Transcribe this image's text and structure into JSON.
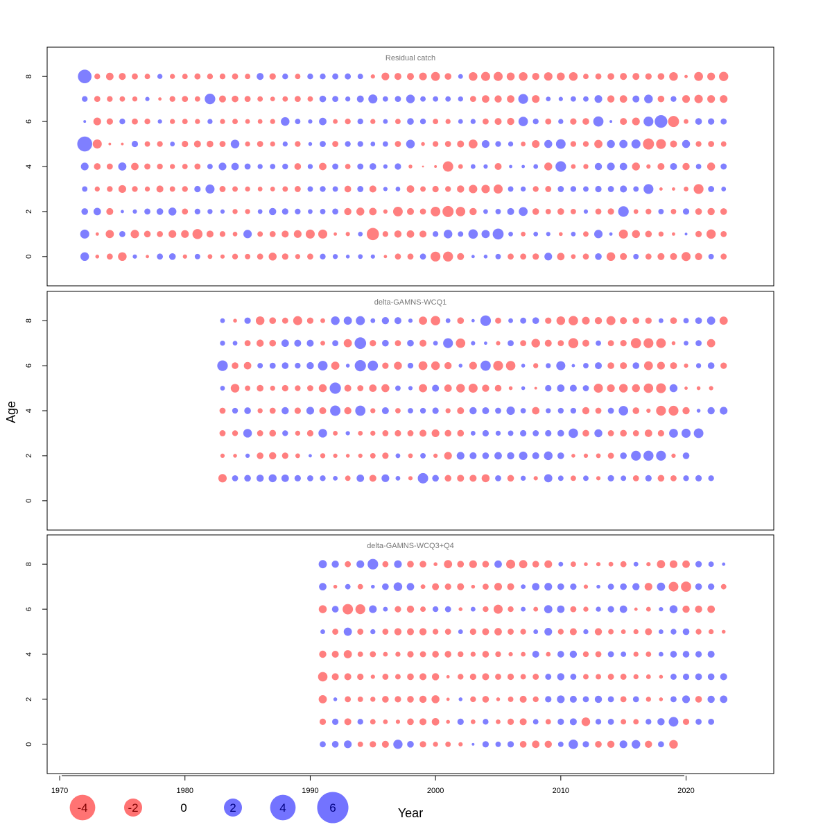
{
  "figure": {
    "y_axis_label": "Age",
    "x_axis_label": "Year",
    "x_tick_labels": [
      "1970",
      "1980",
      "1990",
      "2000",
      "2010",
      "2020"
    ],
    "y_tick_labels": [
      "0",
      "2",
      "4",
      "6",
      "8"
    ]
  },
  "legend": {
    "items": [
      {
        "label": "-4",
        "value": -4
      },
      {
        "label": "-2",
        "value": -2
      },
      {
        "label": "0",
        "value": 0
      },
      {
        "label": "2",
        "value": 2
      },
      {
        "label": "4",
        "value": 4
      },
      {
        "label": "6",
        "value": 6
      }
    ]
  },
  "colors": {
    "positive": "#0000ff",
    "negative": "#ff0000",
    "panel_title": "#777777",
    "frame": "#000000"
  },
  "chart_data": [
    {
      "type": "bubble",
      "title": "Residual catch",
      "xlabel": "Year",
      "ylabel": "Age",
      "xlim": [
        1969,
        2027
      ],
      "ylim": [
        -1.3,
        9.3
      ],
      "ages": [
        0,
        1,
        2,
        3,
        4,
        5,
        6,
        7,
        8
      ],
      "year_start": 1972,
      "year_end": 2023,
      "residuals_by_age": {
        "8": [
          5.0,
          -0.9,
          -1.5,
          -1.3,
          -1.0,
          -0.8,
          0.7,
          -0.7,
          -0.8,
          -1.0,
          -0.9,
          -0.9,
          -1.0,
          -0.8,
          1.3,
          -1.1,
          0.9,
          -0.8,
          0.9,
          0.9,
          1.0,
          1.0,
          0.8,
          -0.5,
          -1.6,
          -1.3,
          -1.3,
          -1.6,
          -2.1,
          -1.2,
          0.6,
          -2.0,
          -2.2,
          -2.2,
          -1.7,
          -2.0,
          -1.4,
          -1.9,
          -1.7,
          -2.0,
          -0.8,
          -1.0,
          -1.2,
          -1.3,
          -1.3,
          -1.1,
          -1.2,
          -2.0,
          -0.3,
          -2.1,
          -1.6,
          -2.3
        ],
        "7": [
          0.9,
          -1.0,
          -0.9,
          -0.8,
          -0.7,
          0.5,
          -0.3,
          -0.9,
          -1.0,
          -0.8,
          3.0,
          -1.3,
          -1.2,
          -1.0,
          -0.8,
          -0.6,
          -0.8,
          -1.0,
          -0.8,
          1.2,
          1.0,
          0.7,
          1.3,
          2.2,
          0.8,
          1.0,
          2.0,
          0.8,
          0.8,
          0.8,
          0.7,
          -1.0,
          -1.5,
          -1.4,
          -1.5,
          2.6,
          -1.6,
          0.6,
          0.5,
          0.8,
          0.8,
          1.6,
          -1.4,
          -1.5,
          1.3,
          2.0,
          -1.2,
          0.9,
          -1.6,
          -1.9,
          -1.6,
          -1.6
        ],
        "6": [
          0.2,
          -1.6,
          -1.1,
          0.9,
          -1.0,
          -0.9,
          0.5,
          -0.7,
          -0.8,
          -0.7,
          0.7,
          -0.7,
          -0.8,
          -0.6,
          -0.6,
          -0.7,
          2.0,
          0.8,
          0.5,
          1.5,
          -0.6,
          -0.9,
          0.9,
          -0.7,
          0.6,
          -0.8,
          1.2,
          0.9,
          -0.8,
          -0.7,
          0.6,
          0.7,
          -1.0,
          -1.3,
          -1.4,
          2.4,
          0.9,
          -1.0,
          0.7,
          -1.1,
          -1.2,
          2.8,
          0.2,
          -1.3,
          -1.6,
          2.6,
          4.3,
          -3.3,
          -0.6,
          1.2,
          1.1,
          1.0
        ],
        "5": [
          6.0,
          -2.2,
          -0.2,
          -0.2,
          1.1,
          -0.8,
          -0.9,
          0.6,
          -1.1,
          -1.3,
          -1.2,
          -1.0,
          2.0,
          -0.7,
          -1.0,
          -0.7,
          0.7,
          -0.9,
          0.4,
          1.0,
          -1.0,
          0.9,
          0.9,
          0.6,
          0.8,
          -1.0,
          2.0,
          -0.4,
          -0.9,
          -1.0,
          -1.3,
          -2.1,
          1.6,
          0.9,
          0.7,
          -0.6,
          -1.6,
          1.7,
          2.5,
          -0.9,
          -0.9,
          -1.8,
          1.7,
          1.8,
          2.2,
          -3.3,
          -2.6,
          -1.3,
          1.7,
          -0.9,
          -1.0,
          -0.8
        ],
        "4": [
          1.6,
          -1.2,
          -1.0,
          1.8,
          -1.5,
          -1.0,
          -0.9,
          -0.7,
          -0.8,
          -1.0,
          0.8,
          1.6,
          1.5,
          1.0,
          0.7,
          0.8,
          0.9,
          -1.2,
          0.7,
          -1.5,
          1.0,
          -0.8,
          1.0,
          1.2,
          0.5,
          1.1,
          -0.4,
          -0.1,
          -0.2,
          -2.9,
          -0.6,
          0.6,
          0.5,
          -1.3,
          0.3,
          0.3,
          0.6,
          -1.7,
          3.0,
          -0.6,
          -0.7,
          1.4,
          1.6,
          1.5,
          -1.7,
          -0.5,
          -1.3,
          1.3,
          -1.4,
          0.8,
          -1.7,
          1.0
        ],
        "3": [
          0.8,
          -0.7,
          -0.9,
          -1.6,
          -0.9,
          -0.7,
          -1.3,
          -0.8,
          -0.9,
          1.1,
          2.2,
          -1.0,
          -0.8,
          -0.7,
          -0.6,
          -0.6,
          -0.8,
          -1.0,
          0.8,
          0.9,
          0.8,
          -1.2,
          1.0,
          -1.3,
          0.5,
          0.6,
          -1.5,
          -0.8,
          -1.1,
          -0.9,
          -1.4,
          -1.9,
          -1.9,
          -2.2,
          0.8,
          0.7,
          -0.9,
          -1.0,
          1.0,
          0.9,
          0.8,
          1.1,
          1.0,
          1.3,
          0.8,
          2.6,
          -0.3,
          -0.3,
          -0.6,
          -2.6,
          1.0,
          0.6
        ],
        "2": [
          1.2,
          1.5,
          -1.3,
          0.3,
          0.5,
          1.0,
          1.2,
          1.7,
          -1.0,
          0.9,
          0.7,
          0.5,
          -0.7,
          -0.7,
          0.6,
          1.4,
          1.1,
          0.9,
          0.6,
          0.8,
          1.0,
          -1.4,
          -1.7,
          -1.5,
          -0.5,
          -2.5,
          -1.3,
          -1.0,
          -2.5,
          -3.3,
          -2.4,
          -1.4,
          0.6,
          0.8,
          1.3,
          2.1,
          -1.2,
          -0.8,
          -1.2,
          -0.8,
          0.5,
          -1.0,
          -1.1,
          3.0,
          -0.6,
          -0.9,
          0.8,
          -0.8,
          1.1,
          -1.2,
          -1.4,
          -1.2
        ],
        "1": [
          2.2,
          -0.3,
          -1.8,
          1.0,
          -1.9,
          -1.2,
          -1.0,
          -1.6,
          -1.6,
          -2.7,
          -1.3,
          -0.9,
          -0.6,
          1.9,
          -0.8,
          -1.0,
          -1.3,
          -1.6,
          -2.2,
          -2.2,
          -0.3,
          -0.5,
          0.6,
          -4.0,
          -0.9,
          -1.4,
          -1.5,
          -1.3,
          0.9,
          2.0,
          0.8,
          2.4,
          1.8,
          3.2,
          0.6,
          -0.6,
          0.6,
          0.5,
          -0.4,
          0.6,
          -0.8,
          1.9,
          0.3,
          -2.2,
          -1.7,
          -1.2,
          -0.7,
          -0.3,
          0.2,
          -1.1,
          -2.3,
          -1.0
        ],
        "0": [
          2.0,
          -0.4,
          -1.0,
          -2.0,
          0.5,
          -0.3,
          1.0,
          1.2,
          -0.5,
          0.8,
          -0.6,
          -0.5,
          -0.9,
          -0.8,
          -1.0,
          -1.7,
          -1.1,
          -0.7,
          -1.0,
          0.9,
          0.7,
          0.4,
          0.6,
          0.5,
          -0.3,
          -1.0,
          -1.0,
          1.0,
          -2.6,
          -2.7,
          -1.3,
          0.3,
          0.4,
          0.8,
          -1.0,
          -1.0,
          -1.1,
          1.6,
          -1.5,
          -0.6,
          -1.0,
          1.2,
          -2.0,
          -1.3,
          0.8,
          -1.0,
          -1.3,
          -1.3,
          -2.2,
          -1.4,
          0.8,
          -1.0
        ]
      }
    },
    {
      "type": "bubble",
      "title": "delta-GAMNS-WCQ1",
      "xlabel": "Year",
      "ylabel": "Age",
      "xlim": [
        1969,
        2027
      ],
      "ylim": [
        -1.3,
        9.3
      ],
      "ages": [
        0,
        1,
        2,
        3,
        4,
        5,
        6,
        7,
        8
      ],
      "year_start": 1983,
      "year_end": 2024,
      "residuals_by_age": {
        "8": [
          0.6,
          -0.4,
          1.1,
          -2.0,
          -1.2,
          -1.0,
          -2.2,
          -1.1,
          -0.6,
          2.0,
          1.8,
          2.2,
          0.6,
          1.4,
          1.3,
          0.5,
          -1.8,
          -2.4,
          0.6,
          -1.2,
          0.3,
          3.0,
          -1.0,
          0.6,
          1.0,
          1.2,
          -1.1,
          -2.0,
          -2.4,
          -1.6,
          -1.4,
          -2.2,
          -1.3,
          -1.2,
          -1.1,
          0.6,
          -1.2,
          0.8,
          1.2,
          1.8,
          -1.8
        ],
        "7": [
          0.7,
          0.6,
          -1.0,
          -1.4,
          -1.2,
          1.5,
          1.3,
          1.3,
          -0.6,
          1.0,
          -1.8,
          3.6,
          -1.1,
          1.2,
          -1.0,
          1.2,
          -1.3,
          0.6,
          2.6,
          -2.4,
          0.5,
          0.3,
          -0.5,
          1.0,
          -1.0,
          -2.0,
          -1.3,
          -1.0,
          -2.7,
          -1.3,
          0.8,
          -1.0,
          -1.1,
          -2.8,
          -2.6,
          -2.5,
          -0.4,
          0.6,
          1.0,
          -1.8
        ],
        "6": [
          3.0,
          -1.2,
          -1.5,
          0.8,
          1.0,
          1.2,
          0.9,
          1.4,
          2.5,
          -1.8,
          0.4,
          3.4,
          2.8,
          -1.1,
          -1.7,
          0.9,
          -2.1,
          -2.0,
          -1.4,
          0.4,
          -1.6,
          2.8,
          -2.6,
          -2.4,
          0.4,
          -0.7,
          0.7,
          2.2,
          0.3,
          0.8,
          1.3,
          -1.2,
          -1.3,
          1.2,
          -2.1,
          -1.6,
          -1.3,
          -0.5,
          0.7,
          1.2,
          -1.1
        ],
        "5": [
          0.6,
          -2.0,
          -0.8,
          -1.2,
          -0.7,
          -1.1,
          -0.9,
          -1.0,
          -1.7,
          3.4,
          -1.3,
          -1.0,
          -1.5,
          -1.7,
          0.8,
          0.5,
          -1.8,
          1.3,
          -1.5,
          -2.0,
          -2.2,
          -1.4,
          -1.2,
          -0.4,
          0.4,
          -0.2,
          1.1,
          1.5,
          1.3,
          1.0,
          -2.2,
          -1.6,
          -2.0,
          -1.7,
          -2.4,
          -2.6,
          1.7,
          -0.3,
          -0.4,
          -0.5
        ],
        "4": [
          -1.0,
          0.9,
          1.2,
          -0.7,
          -1.0,
          1.4,
          -1.1,
          1.6,
          -1.3,
          2.9,
          -1.4,
          2.8,
          -0.7,
          1.3,
          -0.8,
          0.8,
          0.9,
          1.1,
          -0.7,
          -1.3,
          1.4,
          1.3,
          1.0,
          1.9,
          0.8,
          -1.5,
          0.7,
          0.9,
          0.9,
          -1.4,
          -1.0,
          1.0,
          2.4,
          -1.2,
          -0.5,
          -2.6,
          -2.6,
          -1.4,
          0.4,
          1.4,
          1.6
        ],
        "3": [
          -1.0,
          -0.9,
          2.0,
          -1.0,
          -1.2,
          0.9,
          -0.7,
          -1.1,
          2.0,
          -0.6,
          0.5,
          -0.6,
          -0.7,
          -1.0,
          -1.1,
          -1.0,
          -1.3,
          -1.6,
          -1.2,
          -1.2,
          0.6,
          1.1,
          0.7,
          0.8,
          1.1,
          1.0,
          1.1,
          1.2,
          2.4,
          -1.2,
          1.7,
          -1.0,
          -1.2,
          -1.0,
          -1.5,
          -1.1,
          2.1,
          2.2,
          2.5
        ],
        "2": [
          -0.5,
          -0.4,
          0.5,
          -1.2,
          -1.4,
          -1.1,
          -0.6,
          0.3,
          -0.7,
          -0.5,
          -0.4,
          -0.5,
          -0.8,
          -1.1,
          0.6,
          -0.6,
          0.8,
          -0.5,
          -1.6,
          1.6,
          1.3,
          1.2,
          1.5,
          1.4,
          1.9,
          1.3,
          2.0,
          1.2,
          -0.4,
          -0.5,
          -0.6,
          -1.0,
          1.2,
          2.6,
          2.7,
          2.6,
          -0.5,
          1.2
        ],
        "1": [
          -1.9,
          1.0,
          1.2,
          1.4,
          1.7,
          1.5,
          1.1,
          1.0,
          0.9,
          0.6,
          -0.8,
          1.5,
          -1.3,
          1.6,
          0.6,
          -0.5,
          2.9,
          1.2,
          -1.2,
          -1.3,
          -1.3,
          -1.7,
          1.0,
          -1.2,
          0.7,
          -0.5,
          1.8,
          0.8,
          -0.8,
          0.8,
          -0.5,
          1.1,
          0.8,
          -1.0,
          1.1,
          -1.2,
          -1.0,
          0.9,
          1.1,
          0.9
        ],
        "0": []
      }
    },
    {
      "type": "bubble",
      "title": "delta-GAMNS-WCQ3+Q4",
      "xlabel": "Year",
      "ylabel": "Age",
      "xlim": [
        1969,
        2027
      ],
      "ylim": [
        -1.3,
        9.3
      ],
      "ages": [
        0,
        1,
        2,
        3,
        4,
        5,
        6,
        7,
        8
      ],
      "year_start": 1991,
      "year_end": 2023,
      "residuals_by_age": {
        "8": [
          1.8,
          1.4,
          -1.0,
          1.6,
          3.0,
          -1.0,
          1.6,
          -1.2,
          -1.2,
          -0.4,
          -1.8,
          -1.2,
          -1.6,
          -1.2,
          1.5,
          -2.2,
          -1.8,
          -1.2,
          -1.6,
          0.6,
          -0.8,
          -0.4,
          -0.5,
          -0.6,
          -1.0,
          0.6,
          -0.5,
          -1.8,
          -1.6,
          -1.5,
          1.1,
          0.8,
          0.3
        ],
        "7": [
          1.5,
          -0.4,
          0.8,
          -0.8,
          0.4,
          1.2,
          2.0,
          1.5,
          -0.6,
          -1.3,
          -1.1,
          -1.3,
          -0.4,
          -1.0,
          -1.6,
          -1.3,
          0.6,
          1.5,
          1.6,
          1.2,
          1.1,
          -0.5,
          0.4,
          1.0,
          1.2,
          1.4,
          -1.6,
          1.8,
          -2.5,
          -2.8,
          1.2,
          1.1,
          -0.8
        ],
        "6": [
          -1.7,
          1.2,
          -2.9,
          -2.6,
          1.6,
          0.6,
          -1.1,
          -1.4,
          -0.8,
          0.9,
          1.0,
          -0.4,
          0.6,
          -0.9,
          -2.2,
          -0.9,
          0.6,
          -0.6,
          1.8,
          1.5,
          -1.0,
          -0.7,
          0.7,
          1.1,
          1.5,
          -0.3,
          -0.6,
          0.5,
          1.7,
          -1.4,
          -1.4,
          -1.5
        ],
        "5": [
          0.6,
          -1.0,
          1.8,
          -1.0,
          0.7,
          -1.0,
          -1.4,
          -1.3,
          -1.4,
          -0.9,
          -1.0,
          0.6,
          -1.1,
          -1.3,
          -1.5,
          -1.0,
          -0.9,
          0.6,
          1.6,
          -0.9,
          -1.3,
          0.7,
          -1.4,
          -0.8,
          -0.6,
          -0.7,
          -1.3,
          0.6,
          0.9,
          1.2,
          -0.9,
          -0.7,
          -0.4
        ],
        "4": [
          -1.4,
          -1.3,
          -1.8,
          -0.8,
          -1.0,
          -0.6,
          -0.7,
          -1.1,
          -1.0,
          -1.2,
          -1.2,
          -0.9,
          -0.7,
          -1.2,
          -0.9,
          -0.5,
          -0.6,
          1.3,
          -0.6,
          1.2,
          1.4,
          -0.9,
          -1.0,
          1.0,
          0.8,
          -0.7,
          -0.8,
          0.6,
          1.2,
          1.2,
          1.1,
          1.3
        ],
        "3": [
          -2.4,
          -1.3,
          -1.3,
          -1.1,
          -0.5,
          -1.0,
          -0.8,
          -1.2,
          -1.3,
          -1.4,
          -0.3,
          -0.9,
          -1.1,
          -1.3,
          -1.0,
          -1.1,
          -0.8,
          -1.0,
          1.0,
          1.4,
          1.0,
          -0.8,
          -0.8,
          -1.0,
          -1.0,
          -0.7,
          -0.6,
          -0.4,
          1.0,
          1.1,
          1.2,
          1.2,
          1.3
        ],
        "2": [
          -1.8,
          0.4,
          -1.0,
          -0.8,
          -0.7,
          -1.2,
          -1.1,
          -1.2,
          -1.4,
          -1.7,
          -0.3,
          0.4,
          -0.9,
          -1.2,
          -0.4,
          -0.8,
          -1.3,
          -0.9,
          1.1,
          1.6,
          1.3,
          1.0,
          1.4,
          1.0,
          -1.0,
          1.0,
          -0.7,
          -0.4,
          1.0,
          1.6,
          -1.2,
          1.4,
          1.5
        ],
        "1": [
          -1.1,
          1.1,
          -1.3,
          0.9,
          -0.8,
          -0.6,
          -0.5,
          -1.2,
          -1.3,
          -1.5,
          -0.4,
          1.1,
          -0.6,
          0.9,
          -0.6,
          -1.1,
          -1.3,
          0.8,
          -0.8,
          1.1,
          1.3,
          -2.0,
          0.9,
          1.0,
          -0.8,
          -0.8,
          0.9,
          1.4,
          2.5,
          -1.1,
          1.0,
          1.0
        ],
        "0": [
          1.0,
          1.2,
          1.6,
          -0.8,
          -1.1,
          -1.3,
          2.3,
          1.2,
          -1.1,
          -0.7,
          -0.8,
          -0.5,
          0.2,
          1.1,
          0.8,
          1.1,
          -1.2,
          -1.5,
          -1.4,
          0.8,
          2.4,
          1.1,
          -1.2,
          -1.4,
          1.6,
          2.0,
          -1.4,
          1.0,
          -2.0
        ]
      }
    }
  ]
}
